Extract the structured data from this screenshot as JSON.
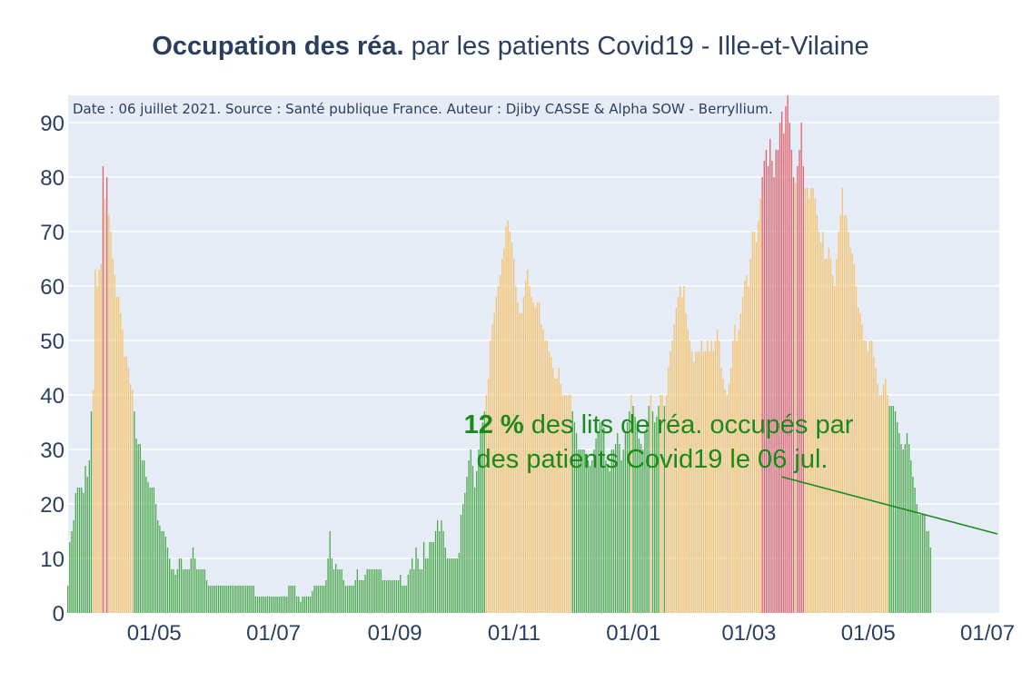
{
  "chart_data": {
    "type": "bar",
    "title_bold": "Occupation des réa.",
    "title_rest": " par les patients Covid19 - Ille-et-Vilaine",
    "source_note": "Date : 06 juillet 2021. Source : Santé publique France. Auteur : Djiby CASSE & Alpha SOW - Berryllium.",
    "annotation_bold": "12  %",
    "annotation_line1": " des lits de réa. occupés par",
    "annotation_line2": "des patients Covid19 le 06 jul.",
    "xlabel": "",
    "ylabel": "",
    "ylim": [
      0,
      95
    ],
    "yticks": [
      0,
      10,
      20,
      30,
      40,
      50,
      60,
      70,
      80,
      90
    ],
    "x_range": [
      "2020-03-18",
      "2021-07-07"
    ],
    "xticks": [
      {
        "date": "2020-05-01",
        "label": "01/05"
      },
      {
        "date": "2020-07-01",
        "label": "01/07"
      },
      {
        "date": "2020-09-01",
        "label": "01/09"
      },
      {
        "date": "2020-11-01",
        "label": "01/11"
      },
      {
        "date": "2021-01-01",
        "label": "01/01"
      },
      {
        "date": "2021-03-01",
        "label": "01/03"
      },
      {
        "date": "2021-05-01",
        "label": "01/05"
      },
      {
        "date": "2021-07-01",
        "label": "01/07"
      }
    ],
    "colors": {
      "green": "#4aa84a",
      "orange": "#f5c26b",
      "red": "#e0606a",
      "plot_bg": "#e5ecf6",
      "grid": "#ffffff",
      "annotation": "#1a8a1a",
      "text": "#2a3f5f"
    },
    "series": [
      {
        "start_date": "2020-03-18",
        "values": [
          5,
          13,
          15,
          17,
          22,
          23,
          23,
          23,
          22,
          27,
          25,
          28,
          37,
          41,
          63,
          60,
          63,
          64,
          82,
          76,
          80,
          73,
          70,
          65,
          62,
          58,
          58,
          55,
          52,
          47,
          47,
          45,
          42,
          41,
          37,
          32,
          31,
          31,
          28,
          28,
          25,
          24,
          23,
          23,
          23,
          20,
          17,
          16,
          15,
          15,
          14,
          12,
          10,
          8,
          8,
          7,
          8,
          10,
          10,
          8,
          8,
          8,
          8,
          10,
          12,
          10,
          8,
          8,
          8,
          8,
          8,
          6,
          5,
          5,
          5,
          5,
          5,
          5,
          5,
          5,
          5,
          5,
          5,
          5,
          5,
          5,
          5,
          5,
          5,
          5,
          5,
          5,
          5,
          5,
          5,
          5,
          3,
          3,
          3,
          3,
          3,
          3,
          3,
          3,
          3,
          3,
          3,
          3,
          3,
          3,
          3,
          3,
          3,
          5,
          5,
          5,
          5,
          3,
          3,
          2,
          3,
          3,
          3,
          3,
          3,
          4,
          5,
          5,
          5,
          5,
          5,
          5,
          6,
          10,
          15,
          10,
          8,
          9,
          8,
          8,
          8,
          6,
          5,
          5,
          5,
          5,
          5,
          6,
          8,
          6,
          6,
          6,
          7,
          8,
          8,
          8,
          8,
          8,
          8,
          8,
          8,
          6,
          6,
          6,
          6,
          6,
          6,
          6,
          6,
          6,
          7,
          5,
          5,
          5,
          7,
          8,
          10,
          8,
          12,
          10,
          8,
          8,
          13,
          10,
          10,
          13,
          13,
          13,
          15,
          17,
          15,
          17,
          15,
          12,
          10,
          10,
          10,
          10,
          10,
          10,
          11,
          18,
          20,
          22,
          25,
          28,
          30,
          27,
          23,
          26,
          30,
          33,
          35,
          37,
          40,
          43,
          50,
          53,
          55,
          58,
          60,
          62,
          65,
          67,
          71,
          72,
          70,
          68,
          65,
          60,
          57,
          55,
          55,
          58,
          61,
          63,
          60,
          58,
          57,
          56,
          57,
          57,
          53,
          52,
          50,
          50,
          48,
          47,
          45,
          43,
          43,
          45,
          42,
          40,
          40,
          40,
          40,
          40,
          37,
          35,
          33,
          30,
          30,
          30,
          30,
          28,
          28,
          27,
          28,
          30,
          32,
          33,
          35,
          35,
          34,
          28,
          27,
          26,
          30,
          30,
          31,
          33,
          31,
          28,
          30,
          33,
          35,
          37,
          40,
          38,
          36,
          34,
          32,
          31,
          30,
          33,
          35,
          38,
          40,
          37,
          35,
          36,
          38,
          40,
          40,
          38,
          40,
          45,
          48,
          50,
          53,
          56,
          58,
          60,
          58,
          60,
          55,
          52,
          50,
          48,
          46,
          48,
          48,
          48,
          50,
          48,
          48,
          50,
          48,
          50,
          48,
          50,
          52,
          50,
          45,
          43,
          41,
          40,
          42,
          45,
          50,
          53,
          50,
          52,
          55,
          58,
          61,
          62,
          60,
          65,
          70,
          70,
          68,
          72,
          76,
          80,
          83,
          85,
          82,
          87,
          83,
          80,
          85,
          85,
          90,
          92,
          88,
          93,
          95,
          90,
          85,
          80,
          79,
          82,
          85,
          90,
          82,
          78,
          78,
          76,
          78,
          78,
          76,
          73,
          70,
          68,
          70,
          65,
          65,
          67,
          65,
          62,
          60,
          65,
          70,
          73,
          78,
          73,
          73,
          70,
          67,
          66,
          64,
          60,
          56,
          55,
          53,
          50,
          50,
          48,
          50,
          50,
          47,
          45,
          42,
          40,
          40,
          42,
          43,
          40,
          38,
          38,
          38,
          37,
          35,
          33,
          31,
          30,
          31,
          33,
          31,
          28,
          25,
          23,
          20,
          18,
          18,
          18,
          18,
          15,
          15,
          12
        ]
      }
    ],
    "annotation_point": {
      "date": "2021-07-06",
      "value": 14.5
    }
  }
}
